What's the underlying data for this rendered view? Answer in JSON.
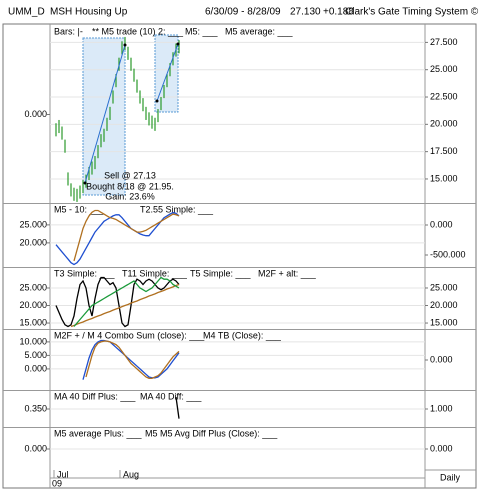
{
  "header": {
    "symbol": "UMM_D",
    "title": "MSH Housing Up",
    "range": "6/30/09 - 8/28/09",
    "price": "27.130",
    "change": "+0.188",
    "system": "Clark's Gate Timing System ©"
  },
  "footer": {
    "months": [
      "Jul",
      "Aug"
    ],
    "year": "09",
    "period": "Daily"
  },
  "chart_data": [
    {
      "type": "range-bar",
      "legend": [
        "Bars: |-",
        "** M5 trade (10) 2: ___",
        "M5: ___",
        "M5 average: ___"
      ],
      "annotations": [
        "Sell @ 27.13",
        "Bought 8/18 @ 21.95.",
        "Gain: 23.6%"
      ],
      "yaxis_side": "right",
      "grid": true,
      "xlim": [
        -2,
        123
      ],
      "ylim": [
        12.8,
        29
      ],
      "color": "#2a9a2a",
      "yticks": [
        {
          "value": 27.5,
          "label": "27.500"
        },
        {
          "value": 25,
          "label": "25.000"
        },
        {
          "value": 22.5,
          "label": "22.500"
        },
        {
          "value": 20,
          "label": "20.000"
        },
        {
          "value": 17.5,
          "label": "17.500"
        },
        {
          "value": 15,
          "label": "15.000"
        }
      ],
      "y2lim": [
        -1,
        1
      ],
      "y2ticks": [
        {
          "value": 0,
          "label": "0.000"
        }
      ],
      "high": [
        20.1,
        20.4,
        19.8,
        18.6,
        15.6,
        14.6,
        14.2,
        14.1,
        14.4,
        14.9,
        15.4,
        16.1,
        16.6,
        17.1,
        18.1,
        19.1,
        19.6,
        20.6,
        21.6,
        23.1,
        24.6,
        26.1,
        27.6,
        28.0,
        27.1,
        26.1,
        25.1,
        24.1,
        23.1,
        22.4,
        21.6,
        21.1,
        20.8,
        20.6,
        21.4,
        22.5,
        23.6,
        24.6,
        25.6,
        26.6,
        27.4,
        27.7
      ],
      "low": [
        18.9,
        19.2,
        18.6,
        17.4,
        14.4,
        13.4,
        13.0,
        12.9,
        13.2,
        13.7,
        14.2,
        14.9,
        15.4,
        15.9,
        16.9,
        17.9,
        18.4,
        19.4,
        20.4,
        21.9,
        23.4,
        24.9,
        26.4,
        26.8,
        25.9,
        24.9,
        23.9,
        22.9,
        21.9,
        21.2,
        20.4,
        19.9,
        19.6,
        19.4,
        20.2,
        21.3,
        22.4,
        23.4,
        24.4,
        25.4,
        26.2,
        26.5
      ]
    },
    {
      "type": "line",
      "legend": [
        "M5 - 10: ___",
        "T2.55 Simple: ___"
      ],
      "grid": true,
      "xlim": [
        -2,
        123
      ],
      "ylim": [
        13.3,
        30.8
      ],
      "yticks": [
        {
          "value": 25,
          "label": "25.000"
        },
        {
          "value": 20,
          "label": "20.000"
        }
      ],
      "y2lim": [
        -700,
        350
      ],
      "y2ticks": [
        {
          "value": 0,
          "label": "0.000"
        },
        {
          "value": -500,
          "label": "-500.000"
        }
      ],
      "series": [
        {
          "color": "#1f4fd0",
          "values": [
            19.5,
            18.5,
            17.5,
            16.5,
            15.5,
            14.5,
            14,
            14.5,
            15.5,
            17,
            18.5,
            20,
            21.5,
            23,
            24,
            25,
            26,
            26.5,
            27,
            27.5,
            27.8,
            27.8,
            27,
            26,
            25,
            24,
            23.5,
            23,
            22.5,
            22.2,
            22,
            22,
            23,
            24,
            25,
            26,
            27,
            27.5,
            28,
            28.4,
            28.2,
            27.5
          ]
        },
        {
          "color": "#b07020",
          "values": [
            null,
            null,
            null,
            null,
            null,
            null,
            15,
            18,
            21,
            24,
            26,
            27.5,
            28.5,
            29,
            29,
            28.5,
            28,
            27.5,
            27,
            26.8,
            26.5,
            26,
            25.5,
            25,
            24.5,
            24,
            23.5,
            23,
            23,
            23.2,
            23.5,
            24,
            24.5,
            25,
            25.5,
            26,
            26.5,
            27,
            27.5,
            28,
            27.8,
            27.5
          ]
        }
      ]
    },
    {
      "type": "line",
      "legend": [
        "T3 Simple: ___",
        "T11 Simple: ___",
        "T5 Simple: ___",
        "M2F + alt: ___"
      ],
      "grid": true,
      "xlim": [
        -2,
        123
      ],
      "ylim": [
        13.3,
        30.7
      ],
      "yticks": [
        {
          "value": 25,
          "label": "25.000"
        },
        {
          "value": 20,
          "label": "20.000"
        },
        {
          "value": 15,
          "label": "15.000"
        }
      ],
      "y2lim": [
        13.3,
        30.7
      ],
      "y2ticks": [
        {
          "value": 25,
          "label": "25.000"
        },
        {
          "value": 20,
          "label": "20.000"
        },
        {
          "value": 15,
          "label": "15.000"
        }
      ],
      "series": [
        {
          "color": "#000000",
          "values": [
            20,
            18,
            16,
            14.5,
            14,
            14.5,
            17,
            22,
            26,
            27,
            25,
            20,
            17,
            22,
            26,
            28,
            28,
            27,
            26,
            26.5,
            25,
            20,
            15,
            14,
            14.5,
            20,
            26,
            27.5,
            27,
            26,
            27,
            27.5,
            27,
            26,
            25,
            24.5,
            25,
            26,
            27,
            27.5,
            27,
            26
          ]
        },
        {
          "color": "#b07020",
          "values": [
            null,
            null,
            null,
            null,
            null,
            14,
            14.3,
            14.7,
            15,
            15.3,
            15.7,
            16,
            16.3,
            16.7,
            17,
            17.3,
            17.7,
            18,
            18.3,
            18.7,
            19,
            19.3,
            19.7,
            20,
            20.3,
            20.7,
            21,
            21.3,
            21.7,
            22,
            22.3,
            22.7,
            23,
            23.3,
            23.7,
            24,
            24.3,
            24.7,
            25,
            25.3,
            25.7,
            26
          ]
        },
        {
          "color": "#1a9a3a",
          "values": [
            null,
            null,
            null,
            null,
            null,
            null,
            14,
            15,
            16,
            17,
            18,
            19,
            20,
            20.5,
            21,
            21.5,
            22,
            22.5,
            23,
            23.5,
            24,
            24.5,
            25,
            25.5,
            26,
            26.5,
            27,
            26,
            25,
            24.5,
            24,
            24.5,
            25,
            26,
            27,
            28,
            27.5,
            27.5,
            27,
            26,
            25.5,
            25
          ]
        }
      ]
    },
    {
      "type": "line",
      "legend": [
        "M2F + / M 4 Combo Sum (close): ___",
        "M4 TB (Close): ___"
      ],
      "grid": true,
      "xlim": [
        -2,
        123
      ],
      "ylim": [
        -7.8,
        14.4
      ],
      "yticks": [
        {
          "value": 10,
          "label": "10.000"
        },
        {
          "value": 5,
          "label": "5.000"
        },
        {
          "value": 0,
          "label": "0.000"
        }
      ],
      "y2lim": [
        -10,
        10
      ],
      "y2ticks": [
        {
          "value": 0,
          "label": "0.000"
        }
      ],
      "series": [
        {
          "color": "#1f4fd0",
          "values": [
            null,
            null,
            null,
            null,
            null,
            null,
            null,
            null,
            null,
            -4,
            0,
            4,
            7,
            9,
            10,
            10.5,
            10.5,
            10.3,
            10,
            9,
            8,
            7,
            6,
            5,
            4,
            3,
            2,
            1,
            0,
            -1,
            -2,
            -3,
            -3.3,
            -3.3,
            -3,
            -2,
            -1,
            0,
            1.5,
            3,
            4.5,
            6
          ]
        },
        {
          "color": "#b07020",
          "values": [
            null,
            null,
            null,
            null,
            null,
            null,
            null,
            null,
            null,
            null,
            -3,
            1,
            5,
            8,
            9.5,
            10,
            10.3,
            10.3,
            10,
            9.5,
            9,
            8,
            6.5,
            5,
            3.5,
            2,
            1,
            0,
            -1,
            -2,
            -3,
            -3.5,
            -3.5,
            -3,
            -2.5,
            -1.5,
            0,
            1.5,
            3,
            4.5,
            5.5,
            6.5
          ]
        }
      ]
    },
    {
      "type": "line",
      "legend": [
        "MA 40 Diff Plus: ___",
        "MA 40 Diff: ___"
      ],
      "grid": true,
      "xlim": [
        -2,
        123
      ],
      "ylim": [
        0.2,
        0.5
      ],
      "yticks": [
        {
          "value": 0.35,
          "label": "0.350"
        }
      ],
      "y2lim": [
        0,
        2
      ],
      "y2ticks": [
        {
          "value": 1,
          "label": "1.000"
        }
      ],
      "series": [
        {
          "color": "#000000",
          "values": [
            null,
            null,
            null,
            null,
            null,
            null,
            null,
            null,
            null,
            null,
            null,
            null,
            null,
            null,
            null,
            null,
            null,
            null,
            null,
            null,
            null,
            null,
            null,
            null,
            null,
            null,
            null,
            null,
            null,
            null,
            null,
            null,
            null,
            null,
            null,
            null,
            null,
            null,
            null,
            null,
            0.45,
            0.27
          ]
        }
      ]
    },
    {
      "type": "line",
      "legend": [
        "M5 average Plus: ___",
        "M5 M5 Avg Diff Plus (Close): ___"
      ],
      "grid": true,
      "xlim": [
        -2,
        123
      ],
      "ylim": [
        -1,
        1
      ],
      "yticks": [
        {
          "value": 0,
          "label": "0.000"
        }
      ],
      "y2lim": [
        -1,
        1
      ],
      "y2ticks": [
        {
          "value": 0,
          "label": "0.000"
        }
      ],
      "series": []
    }
  ]
}
